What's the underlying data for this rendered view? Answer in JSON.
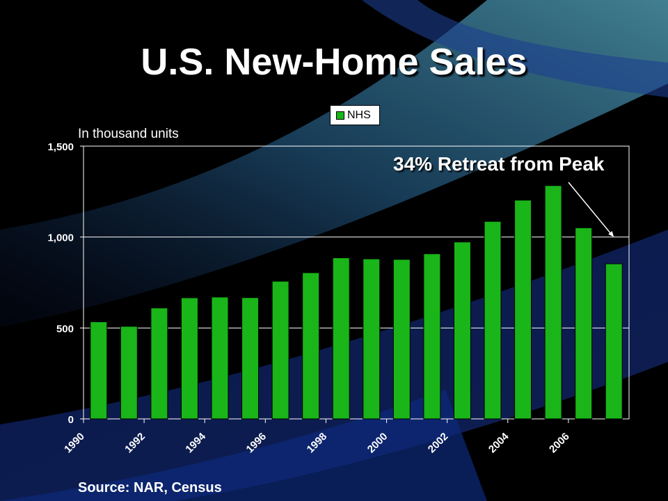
{
  "slide": {
    "title": "U.S. New-Home Sales",
    "unit_label": "In thousand units",
    "source": "Source: NAR, Census"
  },
  "chart_data": {
    "type": "bar",
    "categories": [
      "1990",
      "1991",
      "1992",
      "1993",
      "1994",
      "1995",
      "1996",
      "1997",
      "1998",
      "1999",
      "2000",
      "2001",
      "2002",
      "2003",
      "2004",
      "2005",
      "2006",
      "2007"
    ],
    "x_tick_labels": [
      "1990",
      "1992",
      "1994",
      "1996",
      "1998",
      "2000",
      "2002",
      "2004",
      "2006"
    ],
    "series": [
      {
        "name": "NHS",
        "color": "#19b519",
        "values": [
          534,
          509,
          610,
          666,
          670,
          667,
          757,
          804,
          886,
          880,
          877,
          908,
          973,
          1086,
          1203,
          1283,
          1051,
          853
        ]
      }
    ],
    "ylim": [
      0,
      1500
    ],
    "y_ticks": [
      0,
      500,
      1000,
      1500
    ],
    "y_tick_labels": [
      "0",
      "500",
      "1,000",
      "1,500"
    ],
    "grid": true,
    "legend_position": "top-center",
    "annotation": {
      "text": "34% Retreat from Peak",
      "arrow_target_category": "2007",
      "arrow_target_value": 1000
    }
  }
}
